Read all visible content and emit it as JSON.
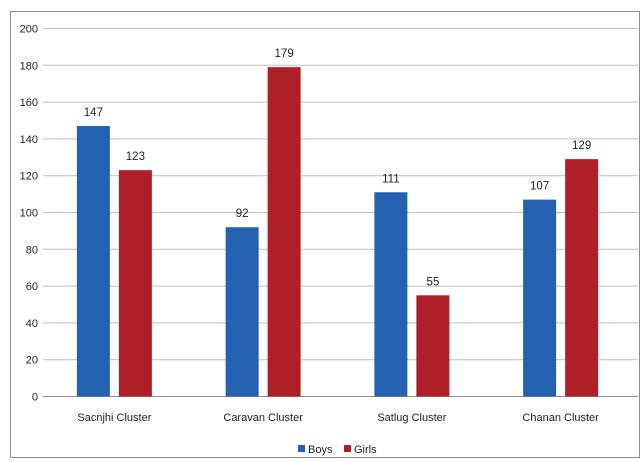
{
  "chart_data": {
    "type": "bar",
    "categories": [
      "Sacnjhi Cluster",
      "Caravan Cluster",
      "Satlug Cluster",
      "Chanan Cluster"
    ],
    "series": [
      {
        "name": "Boys",
        "values": [
          147,
          92,
          111,
          107
        ],
        "color": "#2461b1"
      },
      {
        "name": "Girls",
        "values": [
          123,
          179,
          55,
          129
        ],
        "color": "#ae1f28"
      }
    ],
    "yticks": [
      "0",
      "20",
      "40",
      "60",
      "80",
      "100",
      "120",
      "140",
      "160",
      "180",
      "200"
    ],
    "ylim": [
      0,
      200
    ],
    "grid": true,
    "legend_position": "bottom-center",
    "data_labels": true
  }
}
